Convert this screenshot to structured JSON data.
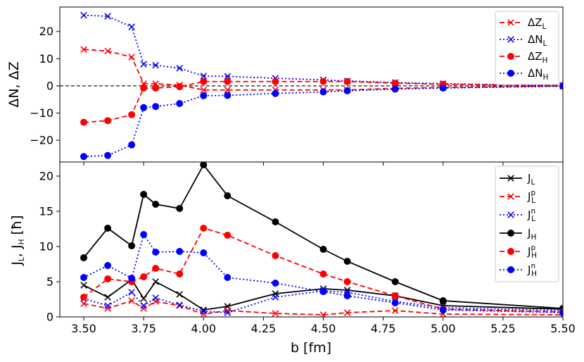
{
  "chart_data": {
    "type": "line",
    "xlabel": "b [fm]",
    "xlim": [
      3.4,
      5.5
    ],
    "xticks": [
      "3.50",
      "3.75",
      "4.00",
      "4.25",
      "4.50",
      "4.75",
      "5.00",
      "5.25",
      "5.50"
    ],
    "panels": [
      {
        "id": "top",
        "ylabel": "ΔN, ΔZ",
        "ylim": [
          -28,
          29
        ],
        "yticks": [
          "−20",
          "−10",
          "0",
          "10",
          "20"
        ],
        "yticks_values": [
          -20,
          -10,
          0,
          10,
          20
        ],
        "reference_line": {
          "y": 0,
          "style": "dashed",
          "color": "#000000"
        },
        "legend": "top-right",
        "series": [
          {
            "name": "ΔZ_L",
            "label_main": "ΔZ",
            "label_sub": "L",
            "label_sup": "",
            "color": "#ff0000",
            "dash": "dashed",
            "marker": "x",
            "x": [
              3.5,
              3.6,
              3.7,
              3.75,
              3.8,
              3.9,
              4.0,
              4.1,
              4.3,
              4.5,
              4.6,
              4.8,
              5.0,
              5.5
            ],
            "y": [
              13.4,
              12.8,
              10.6,
              0.8,
              0.8,
              0.3,
              -1.5,
              -1.5,
              -1.5,
              -1.5,
              -1.5,
              -0.9,
              -0.6,
              -0.1
            ]
          },
          {
            "name": "ΔN_L",
            "label_main": "ΔN",
            "label_sub": "L",
            "label_sup": "",
            "color": "#0000ff",
            "dash": "dotted",
            "marker": "x",
            "x": [
              3.5,
              3.6,
              3.7,
              3.75,
              3.8,
              3.9,
              4.0,
              4.1,
              4.3,
              4.5,
              4.6,
              4.8,
              5.0,
              5.5
            ],
            "y": [
              26.0,
              25.6,
              21.7,
              8.0,
              7.6,
              6.5,
              3.6,
              3.5,
              2.8,
              2.2,
              1.8,
              1.2,
              0.8,
              0.1
            ]
          },
          {
            "name": "ΔZ_H",
            "label_main": "ΔZ",
            "label_sub": "H",
            "label_sup": "",
            "color": "#ff0000",
            "dash": "dashed",
            "marker": "o",
            "x": [
              3.5,
              3.6,
              3.7,
              3.75,
              3.8,
              3.9,
              4.0,
              4.1,
              4.3,
              4.5,
              4.6,
              4.8,
              5.0,
              5.5
            ],
            "y": [
              -13.4,
              -12.8,
              -10.6,
              -0.8,
              -0.8,
              -0.3,
              1.6,
              1.6,
              1.6,
              1.6,
              1.6,
              1.0,
              0.6,
              0.1
            ]
          },
          {
            "name": "ΔN_H",
            "label_main": "ΔN",
            "label_sub": "H",
            "label_sup": "",
            "color": "#0000ff",
            "dash": "dotted",
            "marker": "o",
            "x": [
              3.5,
              3.6,
              3.7,
              3.75,
              3.8,
              3.9,
              4.0,
              4.1,
              4.3,
              4.5,
              4.6,
              4.8,
              5.0,
              5.5
            ],
            "y": [
              -26.0,
              -25.6,
              -21.7,
              -8.0,
              -7.6,
              -6.5,
              -3.6,
              -3.5,
              -2.8,
              -2.2,
              -1.8,
              -1.2,
              -0.8,
              -0.1
            ]
          }
        ]
      },
      {
        "id": "bottom",
        "ylabel": "J_L, J_H [ħ]",
        "ylim": [
          0,
          22
        ],
        "yticks": [
          "0",
          "5",
          "10",
          "15",
          "20"
        ],
        "yticks_values": [
          0,
          5,
          10,
          15,
          20
        ],
        "legend": "top-right",
        "series": [
          {
            "name": "J_L",
            "label_main": "J",
            "label_sub": "L",
            "label_sup": "",
            "color": "#000000",
            "dash": "solid",
            "marker": "x",
            "x": [
              3.5,
              3.6,
              3.7,
              3.75,
              3.8,
              3.9,
              4.0,
              4.1,
              4.3,
              4.5,
              4.6,
              4.8,
              5.0,
              5.5
            ],
            "y": [
              4.5,
              2.8,
              5.3,
              2.6,
              5.0,
              3.2,
              1.0,
              1.5,
              3.3,
              4.0,
              3.8,
              3.0,
              1.6,
              1.1
            ]
          },
          {
            "name": "J_L^p",
            "label_main": "J",
            "label_sub": "L",
            "label_sup": "p",
            "color": "#ff0000",
            "dash": "dashed",
            "marker": "x",
            "x": [
              3.5,
              3.6,
              3.7,
              3.75,
              3.8,
              3.9,
              4.0,
              4.1,
              4.3,
              4.5,
              4.6,
              4.8,
              5.0,
              5.5
            ],
            "y": [
              1.9,
              1.2,
              2.3,
              1.2,
              2.2,
              1.6,
              0.4,
              0.9,
              0.5,
              0.3,
              0.6,
              0.9,
              0.4,
              0.3
            ]
          },
          {
            "name": "J_L^n",
            "label_main": "J",
            "label_sub": "L",
            "label_sup": "n",
            "color": "#0000ff",
            "dash": "dotted",
            "marker": "x",
            "x": [
              3.5,
              3.6,
              3.7,
              3.75,
              3.8,
              3.9,
              4.0,
              4.1,
              4.3,
              4.5,
              4.6,
              4.8,
              5.0,
              5.5
            ],
            "y": [
              2.6,
              1.6,
              3.5,
              1.6,
              2.7,
              1.7,
              0.8,
              0.6,
              2.8,
              3.7,
              3.5,
              2.2,
              1.3,
              0.9
            ]
          },
          {
            "name": "J_H",
            "label_main": "J",
            "label_sub": "H",
            "label_sup": "",
            "color": "#000000",
            "dash": "solid",
            "marker": "o",
            "x": [
              3.5,
              3.6,
              3.7,
              3.75,
              3.8,
              3.9,
              4.0,
              4.1,
              4.3,
              4.5,
              4.6,
              4.8,
              5.0,
              5.5
            ],
            "y": [
              8.4,
              12.6,
              10.1,
              17.4,
              16.0,
              15.4,
              21.6,
              17.2,
              13.5,
              9.6,
              7.9,
              5.0,
              2.3,
              1.2
            ]
          },
          {
            "name": "J_H^p",
            "label_main": "J",
            "label_sub": "H",
            "label_sup": "p",
            "color": "#ff0000",
            "dash": "dashed",
            "marker": "o",
            "x": [
              3.5,
              3.6,
              3.7,
              3.75,
              3.8,
              3.9,
              4.0,
              4.1,
              4.3,
              4.5,
              4.6,
              4.8,
              5.0,
              5.5
            ],
            "y": [
              2.8,
              5.4,
              5.0,
              5.7,
              6.9,
              6.1,
              12.6,
              11.6,
              8.7,
              6.1,
              5.0,
              3.0,
              1.1,
              0.7
            ]
          },
          {
            "name": "J_H^n",
            "label_main": "J",
            "label_sub": "H",
            "label_sup": "n",
            "color": "#0000ff",
            "dash": "dotted",
            "marker": "o",
            "x": [
              3.5,
              3.6,
              3.7,
              3.75,
              3.8,
              3.9,
              4.0,
              4.1,
              4.3,
              4.5,
              4.6,
              4.8,
              5.0,
              5.5
            ],
            "y": [
              5.6,
              7.3,
              5.5,
              11.7,
              9.2,
              9.3,
              9.1,
              5.6,
              4.8,
              3.6,
              3.0,
              2.0,
              1.0,
              0.6
            ]
          }
        ]
      }
    ]
  }
}
